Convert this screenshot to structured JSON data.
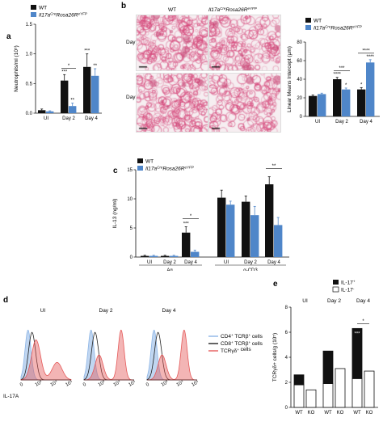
{
  "colors": {
    "wt": "#111111",
    "ko": "#4f86c9",
    "red": "#e55a5a",
    "blue_hist": "#8db5e6",
    "gray_hist": "#7a7a7a",
    "tissue": "#d6487b"
  },
  "legend": {
    "wt": "WT",
    "ko_main": "Il17a",
    "ko_sup1": "Cre",
    "ko_mid": "Rosa26R",
    "ko_sup2": "eYFP"
  },
  "panel_a": {
    "letter": "a",
    "chart_data": {
      "type": "bar",
      "categories": [
        "UI",
        "Day 2",
        "Day 4"
      ],
      "series": [
        {
          "name": "WT",
          "values": [
            0.05,
            0.55,
            0.78
          ],
          "errors": [
            0.02,
            0.1,
            0.22
          ]
        },
        {
          "name": "Il17aCreRosa26ReYFP",
          "values": [
            0.03,
            0.12,
            0.63
          ],
          "errors": [
            0.01,
            0.05,
            0.12
          ]
        }
      ],
      "ylabel": "Neutrophils/ml (10⁵)",
      "ylim": [
        0,
        1.5
      ],
      "yticks": [
        "0.0",
        "0.5",
        "1.0",
        "1.5"
      ],
      "annotations": [
        {
          "text": "*",
          "group": "Day 2",
          "bracket": true
        },
        {
          "text": "***",
          "group": "Day 2",
          "series": 0
        },
        {
          "text": "**",
          "group": "Day 2",
          "series": 1
        },
        {
          "text": "***",
          "group": "Day 4",
          "series": 0
        },
        {
          "text": "**",
          "group": "Day 4",
          "series": 1
        }
      ]
    }
  },
  "panel_b": {
    "letter": "b",
    "col_wt": "WT",
    "col_ko": "Il17a",
    "col_ko_sup1": "Cre",
    "col_ko_mid": "Rosa26R",
    "col_ko_sup2": "eYFP",
    "row1": "Day 2",
    "row2": "Day 4",
    "chart_data": {
      "type": "bar",
      "categories": [
        "UI",
        "Day 2",
        "Day 4"
      ],
      "series": [
        {
          "name": "WT",
          "values": [
            22,
            40,
            29
          ],
          "errors": [
            1,
            2,
            2
          ]
        },
        {
          "name": "Il17aCreRosa26ReYFP",
          "values": [
            24,
            29,
            58
          ],
          "errors": [
            1,
            1.5,
            3
          ]
        }
      ],
      "ylabel": "Linear Means Intercept (µm)",
      "ylim": [
        0,
        80
      ],
      "yticks": [
        "0",
        "20",
        "40",
        "60",
        "80"
      ],
      "annotations": [
        {
          "text": "***",
          "group": "Day 2",
          "bracket": true
        },
        {
          "text": "****",
          "group": "Day 2",
          "series": 0
        },
        {
          "text": "*",
          "group": "Day 2",
          "series": 1
        },
        {
          "text": "****",
          "group": "Day 4",
          "bracket": true
        },
        {
          "text": "*",
          "group": "Day 4",
          "series": 0
        },
        {
          "text": "****",
          "group": "Day 4",
          "series": 1
        }
      ]
    }
  },
  "panel_c": {
    "letter": "c",
    "chart_data": {
      "type": "bar",
      "categories": [
        "UI",
        "Day 2",
        "Day 4",
        "UI",
        "Day 2",
        "Day 4"
      ],
      "group_labels": [
        "Ag",
        "α-CD3"
      ],
      "series": [
        {
          "name": "WT",
          "values": [
            0.2,
            0.2,
            4.2,
            10.2,
            9.5,
            12.5
          ],
          "errors": [
            0.1,
            0.1,
            1.0,
            1.3,
            1.0,
            1.3
          ]
        },
        {
          "name": "Il17aCreRosa26ReYFP",
          "values": [
            0.2,
            0.2,
            0.9,
            9.0,
            7.2,
            5.5
          ],
          "errors": [
            0.1,
            0.1,
            0.3,
            0.6,
            1.5,
            1.3
          ]
        }
      ],
      "ylabel": "IL-13 (ng/ml)",
      "ylim": [
        0,
        15
      ],
      "yticks": [
        "0",
        "5",
        "10",
        "15"
      ],
      "annotations": [
        {
          "text": "*",
          "group": 2,
          "bracket": true
        },
        {
          "text": "***",
          "group": 2,
          "series": 0
        },
        {
          "text": "**",
          "group": 5,
          "bracket": true
        }
      ]
    }
  },
  "panel_d": {
    "letter": "d",
    "titles": [
      "UI",
      "Day 2",
      "Day 4"
    ],
    "xlabel": "IL-17A",
    "xticks": [
      "0",
      "10³",
      "10⁴",
      "10⁵"
    ],
    "legend": [
      {
        "name": "CD4",
        "sup1": "+",
        "mid": " TCRβ",
        "sup2": "+",
        "tail": " cells"
      },
      {
        "name": "CD8",
        "sup1": "+",
        "mid": " TCRβ",
        "sup2": "+",
        "tail": " cells"
      },
      {
        "name": "TCRγδ",
        "sup1": "+",
        "mid": "",
        "sup2": "",
        "tail": " cells"
      }
    ]
  },
  "panel_e": {
    "letter": "e",
    "legend_pos": "IL-17",
    "legend_pos_sup": "+",
    "legend_neg": "IL-17",
    "legend_neg_sup": "-",
    "group_titles": [
      "UI",
      "Day 2",
      "Day 4"
    ],
    "xlabels": [
      "WT",
      "KO",
      "WT",
      "KO",
      "WT",
      "KO"
    ],
    "chart_data": {
      "type": "bar",
      "stacked": true,
      "categories": [
        "WT",
        "KO",
        "WT",
        "KO",
        "WT",
        "KO"
      ],
      "groups": [
        "UI",
        "UI",
        "Day 2",
        "Day 2",
        "Day 4",
        "Day 4"
      ],
      "series": [
        {
          "name": "IL-17+",
          "values": [
            0.8,
            0.0,
            2.6,
            0.0,
            4.0,
            0.0
          ]
        },
        {
          "name": "IL-17-",
          "values": [
            1.8,
            1.4,
            1.9,
            3.1,
            2.3,
            2.9
          ]
        }
      ],
      "ylabel": "TCRγδ+ cells/g (10⁵)",
      "ylim": [
        0,
        8
      ],
      "yticks": [
        "0",
        "2",
        "4",
        "6",
        "8"
      ],
      "annotations": [
        {
          "text": "*",
          "group": "Day 4",
          "bracket": true
        },
        {
          "text": "***",
          "group": "Day 4",
          "series": 0
        }
      ]
    }
  }
}
